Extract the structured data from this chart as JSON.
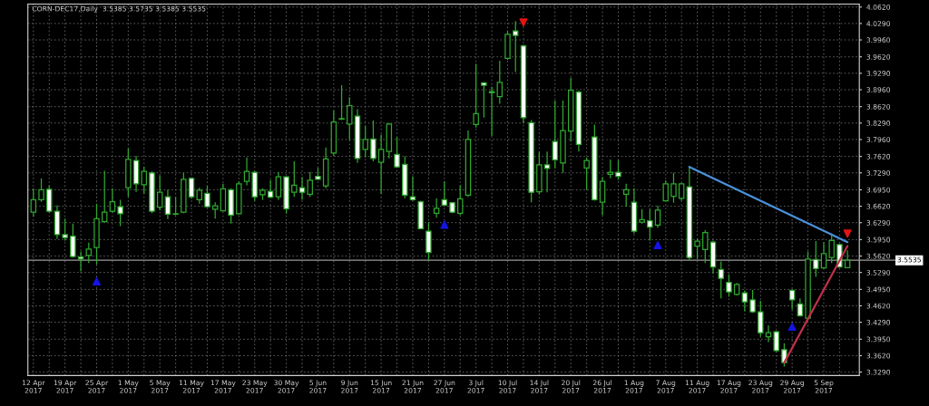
{
  "chart_data": {
    "type": "candlestick",
    "title": "CORN-DEC17,Daily  3.5385 3.5735 3.5385 3.5535",
    "categories": [
      "12 Apr 2017",
      null,
      null,
      null,
      "19 Apr 2017",
      null,
      null,
      null,
      "25 Apr 2017",
      null,
      null,
      null,
      "1 May 2017",
      null,
      null,
      null,
      "5 May 2017",
      null,
      null,
      null,
      "11 May 2017",
      null,
      null,
      null,
      "17 May 2017",
      null,
      null,
      null,
      "23 May 2017",
      null,
      null,
      null,
      "30 May 2017",
      null,
      null,
      null,
      "5 Jun 2017",
      null,
      null,
      null,
      "9 Jun 2017",
      null,
      null,
      null,
      "15 Jun 2017",
      null,
      null,
      null,
      "21 Jun 2017",
      null,
      null,
      null,
      "27 Jun 2017",
      null,
      null,
      null,
      "3 Jul 2017",
      null,
      null,
      null,
      "10 Jul 2017",
      null,
      null,
      null,
      "14 Jul 2017",
      null,
      null,
      null,
      "20 Jul 2017",
      null,
      null,
      null,
      "26 Jul 2017",
      null,
      null,
      null,
      "1 Aug 2017",
      null,
      null,
      null,
      "7 Aug 2017",
      null,
      null,
      null,
      "11 Aug 2017",
      null,
      null,
      null,
      "17 Aug 2017",
      null,
      null,
      null,
      "23 Aug 2017",
      null,
      null,
      null,
      "29 Aug 2017",
      null,
      null,
      null,
      "5 Sep 2017",
      null,
      null,
      null
    ],
    "ohlc": [
      [
        3.65,
        3.698,
        3.641,
        3.675
      ],
      [
        3.675,
        3.718,
        3.671,
        3.695
      ],
      [
        3.696,
        3.704,
        3.649,
        3.652
      ],
      [
        3.652,
        3.664,
        3.596,
        3.605
      ],
      [
        3.605,
        3.637,
        3.593,
        3.599
      ],
      [
        3.602,
        3.627,
        3.559,
        3.561
      ],
      [
        3.56,
        3.571,
        3.531,
        3.556
      ],
      [
        3.563,
        3.589,
        3.548,
        3.576
      ],
      [
        3.579,
        3.667,
        3.545,
        3.637
      ],
      [
        3.631,
        3.733,
        3.63,
        3.65
      ],
      [
        3.652,
        3.698,
        3.649,
        3.671
      ],
      [
        3.661,
        3.675,
        3.622,
        3.647
      ],
      [
        3.699,
        3.778,
        3.681,
        3.756
      ],
      [
        3.754,
        3.763,
        3.691,
        3.707
      ],
      [
        3.705,
        3.741,
        3.687,
        3.732
      ],
      [
        3.729,
        3.732,
        3.648,
        3.652
      ],
      [
        3.66,
        3.724,
        3.654,
        3.69
      ],
      [
        3.681,
        3.695,
        3.636,
        3.646
      ],
      [
        3.646,
        3.681,
        3.644,
        3.647
      ],
      [
        3.65,
        3.729,
        3.648,
        3.716
      ],
      [
        3.718,
        3.72,
        3.677,
        3.681
      ],
      [
        3.675,
        3.699,
        3.667,
        3.694
      ],
      [
        3.688,
        3.703,
        3.66,
        3.661
      ],
      [
        3.656,
        3.67,
        3.637,
        3.663
      ],
      [
        3.653,
        3.707,
        3.652,
        3.697
      ],
      [
        3.695,
        3.698,
        3.627,
        3.644
      ],
      [
        3.647,
        3.712,
        3.646,
        3.707
      ],
      [
        3.712,
        3.76,
        3.704,
        3.732
      ],
      [
        3.73,
        3.732,
        3.673,
        3.681
      ],
      [
        3.685,
        3.698,
        3.675,
        3.694
      ],
      [
        3.692,
        3.715,
        3.678,
        3.68
      ],
      [
        3.681,
        3.731,
        3.675,
        3.721
      ],
      [
        3.721,
        3.722,
        3.647,
        3.657
      ],
      [
        3.69,
        3.752,
        3.681,
        3.704
      ],
      [
        3.699,
        3.721,
        3.675,
        3.69
      ],
      [
        3.686,
        3.731,
        3.681,
        3.714
      ],
      [
        3.722,
        3.739,
        3.715,
        3.716
      ],
      [
        3.703,
        3.78,
        3.698,
        3.757
      ],
      [
        3.769,
        3.854,
        3.763,
        3.831
      ],
      [
        3.837,
        3.905,
        3.835,
        3.838
      ],
      [
        3.827,
        3.881,
        3.795,
        3.864
      ],
      [
        3.843,
        3.857,
        3.749,
        3.758
      ],
      [
        3.776,
        3.823,
        3.76,
        3.796
      ],
      [
        3.797,
        3.834,
        3.752,
        3.758
      ],
      [
        3.75,
        3.806,
        3.687,
        3.776
      ],
      [
        3.772,
        3.829,
        3.758,
        3.827
      ],
      [
        3.766,
        3.801,
        3.739,
        3.741
      ],
      [
        3.746,
        3.762,
        3.678,
        3.684
      ],
      [
        3.681,
        3.722,
        3.673,
        3.675
      ],
      [
        3.671,
        3.673,
        3.616,
        3.617
      ],
      [
        3.612,
        3.63,
        3.554,
        3.569
      ],
      [
        3.648,
        3.678,
        3.639,
        3.658
      ],
      [
        3.675,
        3.712,
        3.663,
        3.664
      ],
      [
        3.669,
        3.67,
        3.648,
        3.65
      ],
      [
        3.648,
        3.704,
        3.644,
        3.677
      ],
      [
        3.684,
        3.814,
        3.681,
        3.796
      ],
      [
        3.826,
        3.948,
        3.82,
        3.848
      ],
      [
        3.91,
        3.911,
        3.84,
        3.905
      ],
      [
        3.89,
        3.902,
        3.803,
        3.892
      ],
      [
        3.882,
        3.954,
        3.868,
        3.911
      ],
      [
        3.959,
        4.014,
        3.956,
        4.007
      ],
      [
        4.014,
        4.034,
        3.932,
        4.005
      ],
      [
        3.984,
        3.987,
        3.829,
        3.84
      ],
      [
        3.83,
        3.835,
        3.67,
        3.69
      ],
      [
        3.691,
        3.772,
        3.686,
        3.745
      ],
      [
        3.745,
        3.772,
        3.69,
        3.738
      ],
      [
        3.792,
        3.874,
        3.738,
        3.755
      ],
      [
        3.749,
        3.874,
        3.729,
        3.814
      ],
      [
        3.813,
        3.92,
        3.792,
        3.895
      ],
      [
        3.891,
        3.894,
        3.772,
        3.786
      ],
      [
        3.739,
        3.76,
        3.695,
        3.754
      ],
      [
        3.801,
        3.826,
        3.673,
        3.675
      ],
      [
        3.67,
        3.721,
        3.644,
        3.712
      ],
      [
        3.726,
        3.756,
        3.718,
        3.73
      ],
      [
        3.73,
        3.754,
        3.715,
        3.722
      ],
      [
        3.686,
        3.707,
        3.661,
        3.695
      ],
      [
        3.67,
        3.698,
        3.607,
        3.612
      ],
      [
        3.63,
        3.656,
        3.627,
        3.635
      ],
      [
        3.633,
        3.656,
        3.593,
        3.62
      ],
      [
        3.624,
        3.663,
        3.619,
        3.654
      ],
      [
        3.673,
        3.714,
        3.673,
        3.707
      ],
      [
        3.682,
        3.729,
        3.669,
        3.707
      ],
      [
        3.678,
        3.709,
        3.673,
        3.707
      ],
      [
        3.701,
        3.743,
        3.554,
        3.559
      ],
      [
        3.582,
        3.597,
        3.556,
        3.592
      ],
      [
        3.575,
        3.614,
        3.548,
        3.609
      ],
      [
        3.59,
        3.593,
        3.527,
        3.54
      ],
      [
        3.535,
        3.551,
        3.477,
        3.517
      ],
      [
        3.509,
        3.525,
        3.48,
        3.49
      ],
      [
        3.485,
        3.508,
        3.483,
        3.505
      ],
      [
        3.488,
        3.493,
        3.451,
        3.47
      ],
      [
        3.474,
        3.494,
        3.448,
        3.45
      ],
      [
        3.45,
        3.472,
        3.4,
        3.408
      ],
      [
        3.4,
        3.423,
        3.389,
        3.408
      ],
      [
        3.41,
        3.412,
        3.369,
        3.372
      ],
      [
        3.374,
        3.387,
        3.34,
        3.348
      ],
      [
        3.493,
        3.495,
        3.454,
        3.474
      ],
      [
        3.466,
        3.477,
        3.44,
        3.442
      ],
      [
        3.437,
        3.571,
        3.434,
        3.556
      ],
      [
        3.555,
        3.592,
        3.52,
        3.537
      ],
      [
        3.538,
        3.59,
        3.537,
        3.567
      ],
      [
        3.559,
        3.607,
        3.548,
        3.593
      ],
      [
        3.585,
        3.586,
        3.539,
        3.54
      ],
      [
        3.5385,
        3.5735,
        3.5385,
        3.5535
      ]
    ],
    "color": "#2fa82f",
    "series": [
      {
        "type": "scatter",
        "marker": "triangle",
        "color": "#1414e6",
        "values": [
          null,
          null,
          null,
          null,
          null,
          null,
          null,
          null,
          3.511,
          null,
          null,
          null,
          null,
          null,
          null,
          null,
          null,
          null,
          null,
          null,
          null,
          null,
          null,
          null,
          null,
          null,
          null,
          null,
          null,
          null,
          null,
          null,
          null,
          null,
          null,
          null,
          null,
          null,
          null,
          null,
          null,
          null,
          null,
          null,
          null,
          null,
          null,
          null,
          null,
          null,
          null,
          null,
          3.625,
          null,
          null,
          null,
          null,
          null,
          null,
          null,
          null,
          null,
          null,
          null,
          null,
          null,
          null,
          null,
          null,
          null,
          null,
          null,
          null,
          null,
          null,
          null,
          null,
          null,
          null,
          3.584,
          null,
          null,
          null,
          null,
          null,
          null,
          null,
          null,
          null,
          null,
          null,
          null,
          null,
          null,
          null,
          null,
          3.42,
          null,
          null,
          null,
          null,
          null,
          null,
          null
        ]
      },
      {
        "type": "scatter",
        "marker": "triangle_down",
        "color": "#e61414",
        "values": [
          null,
          null,
          null,
          null,
          null,
          null,
          null,
          null,
          null,
          null,
          null,
          null,
          null,
          null,
          null,
          null,
          null,
          null,
          null,
          null,
          null,
          null,
          null,
          null,
          null,
          null,
          null,
          null,
          null,
          null,
          null,
          null,
          null,
          null,
          null,
          null,
          null,
          null,
          null,
          null,
          null,
          null,
          null,
          null,
          null,
          null,
          null,
          null,
          null,
          null,
          null,
          null,
          null,
          null,
          null,
          null,
          null,
          null,
          null,
          null,
          null,
          null,
          4.031,
          null,
          null,
          null,
          null,
          null,
          null,
          null,
          null,
          null,
          null,
          null,
          null,
          null,
          null,
          null,
          null,
          null,
          null,
          null,
          null,
          null,
          null,
          null,
          null,
          null,
          null,
          null,
          null,
          null,
          null,
          null,
          null,
          null,
          null,
          null,
          null,
          null,
          null,
          null,
          null,
          3.607
        ]
      },
      {
        "type": "line",
        "color": "#4a90d9",
        "values": [
          null,
          null,
          null,
          null,
          null,
          null,
          null,
          null,
          null,
          null,
          null,
          null,
          null,
          null,
          null,
          null,
          null,
          null,
          null,
          null,
          null,
          null,
          null,
          null,
          null,
          null,
          null,
          null,
          null,
          null,
          null,
          null,
          null,
          null,
          null,
          null,
          null,
          null,
          null,
          null,
          null,
          null,
          null,
          null,
          null,
          null,
          null,
          null,
          null,
          null,
          null,
          null,
          null,
          null,
          null,
          null,
          null,
          null,
          null,
          null,
          null,
          null,
          null,
          null,
          null,
          null,
          null,
          null,
          null,
          null,
          null,
          null,
          null,
          null,
          null,
          null,
          null,
          null,
          null,
          null,
          null,
          null,
          null,
          3.741,
          null,
          null,
          null,
          null,
          null,
          null,
          null,
          null,
          null,
          null,
          null,
          null,
          null,
          null,
          null,
          null,
          null,
          null,
          null,
          3.59
        ]
      },
      {
        "type": "line",
        "color": "#c0304a",
        "values": [
          null,
          null,
          null,
          null,
          null,
          null,
          null,
          null,
          null,
          null,
          null,
          null,
          null,
          null,
          null,
          null,
          null,
          null,
          null,
          null,
          null,
          null,
          null,
          null,
          null,
          null,
          null,
          null,
          null,
          null,
          null,
          null,
          null,
          null,
          null,
          null,
          null,
          null,
          null,
          null,
          null,
          null,
          null,
          null,
          null,
          null,
          null,
          null,
          null,
          null,
          null,
          null,
          null,
          null,
          null,
          null,
          null,
          null,
          null,
          null,
          null,
          null,
          null,
          null,
          null,
          null,
          null,
          null,
          null,
          null,
          null,
          null,
          null,
          null,
          null,
          null,
          null,
          null,
          null,
          null,
          null,
          null,
          null,
          null,
          null,
          null,
          null,
          null,
          null,
          null,
          null,
          null,
          null,
          null,
          null,
          3.348,
          null,
          null,
          null,
          null,
          null,
          null,
          null,
          3.582
        ]
      }
    ],
    "ylim": [
      3.322,
      4.068
    ],
    "yticks": [
      {
        "value": 3.329,
        "label": "3.3290"
      },
      {
        "value": 3.362,
        "label": "3.3620"
      },
      {
        "value": 3.395,
        "label": "3.3950"
      },
      {
        "value": 3.429,
        "label": "3.4290"
      },
      {
        "value": 3.462,
        "label": "3.4620"
      },
      {
        "value": 3.495,
        "label": "3.4950"
      },
      {
        "value": 3.529,
        "label": "3.5290"
      },
      {
        "value": 3.562,
        "label": "3.5620"
      },
      {
        "value": 3.595,
        "label": "3.5950"
      },
      {
        "value": 3.629,
        "label": "3.6290"
      },
      {
        "value": 3.662,
        "label": "3.6620"
      },
      {
        "value": 3.695,
        "label": "3.6950"
      },
      {
        "value": 3.729,
        "label": "3.7290"
      },
      {
        "value": 3.762,
        "label": "3.7620"
      },
      {
        "value": 3.796,
        "label": "3.7960"
      },
      {
        "value": 3.829,
        "label": "3.8290"
      },
      {
        "value": 3.862,
        "label": "3.8620"
      },
      {
        "value": 3.896,
        "label": "3.8960"
      },
      {
        "value": 3.929,
        "label": "3.9290"
      },
      {
        "value": 3.962,
        "label": "3.9620"
      },
      {
        "value": 3.996,
        "label": "3.9960"
      },
      {
        "value": 4.029,
        "label": "4.0290"
      },
      {
        "value": 4.062,
        "label": "4.0620"
      }
    ],
    "ref_lines": [
      {
        "axis": "y",
        "value": 3.5535,
        "label": "3.5535",
        "color": "#9a9a9a"
      }
    ],
    "grid": true
  }
}
